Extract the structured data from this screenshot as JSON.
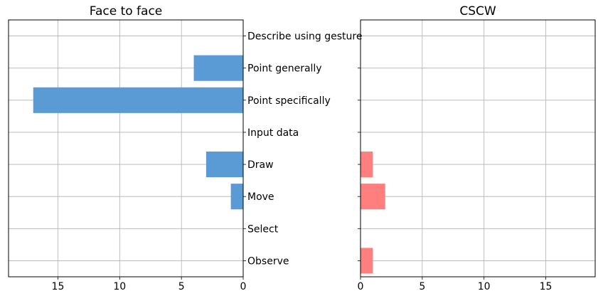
{
  "chart_data": [
    {
      "type": "bar",
      "orientation": "horizontal",
      "direction": "reversed",
      "title": "Face to face",
      "xlabel": "",
      "ylabel": "",
      "categories": [
        "Describe using gesture",
        "Point generally",
        "Point specifically",
        "Input data",
        "Draw",
        "Move",
        "Select",
        "Observe"
      ],
      "values": [
        0,
        4,
        17,
        0,
        3,
        1,
        0,
        0
      ],
      "xlim": [
        19,
        0
      ],
      "xticks": [
        15,
        10,
        5,
        0
      ],
      "color": "#5b9bd5",
      "grid": true
    },
    {
      "type": "bar",
      "orientation": "horizontal",
      "title": "CSCW",
      "xlabel": "",
      "ylabel": "",
      "categories": [
        "Describe using gesture",
        "Point generally",
        "Point specifically",
        "Input data",
        "Draw",
        "Move",
        "Select",
        "Observe"
      ],
      "values": [
        0,
        0,
        0,
        0,
        1,
        2,
        0,
        1
      ],
      "xlim": [
        0,
        19
      ],
      "xticks": [
        0,
        5,
        10,
        15
      ],
      "color": "#ff7f7f",
      "grid": true
    }
  ]
}
